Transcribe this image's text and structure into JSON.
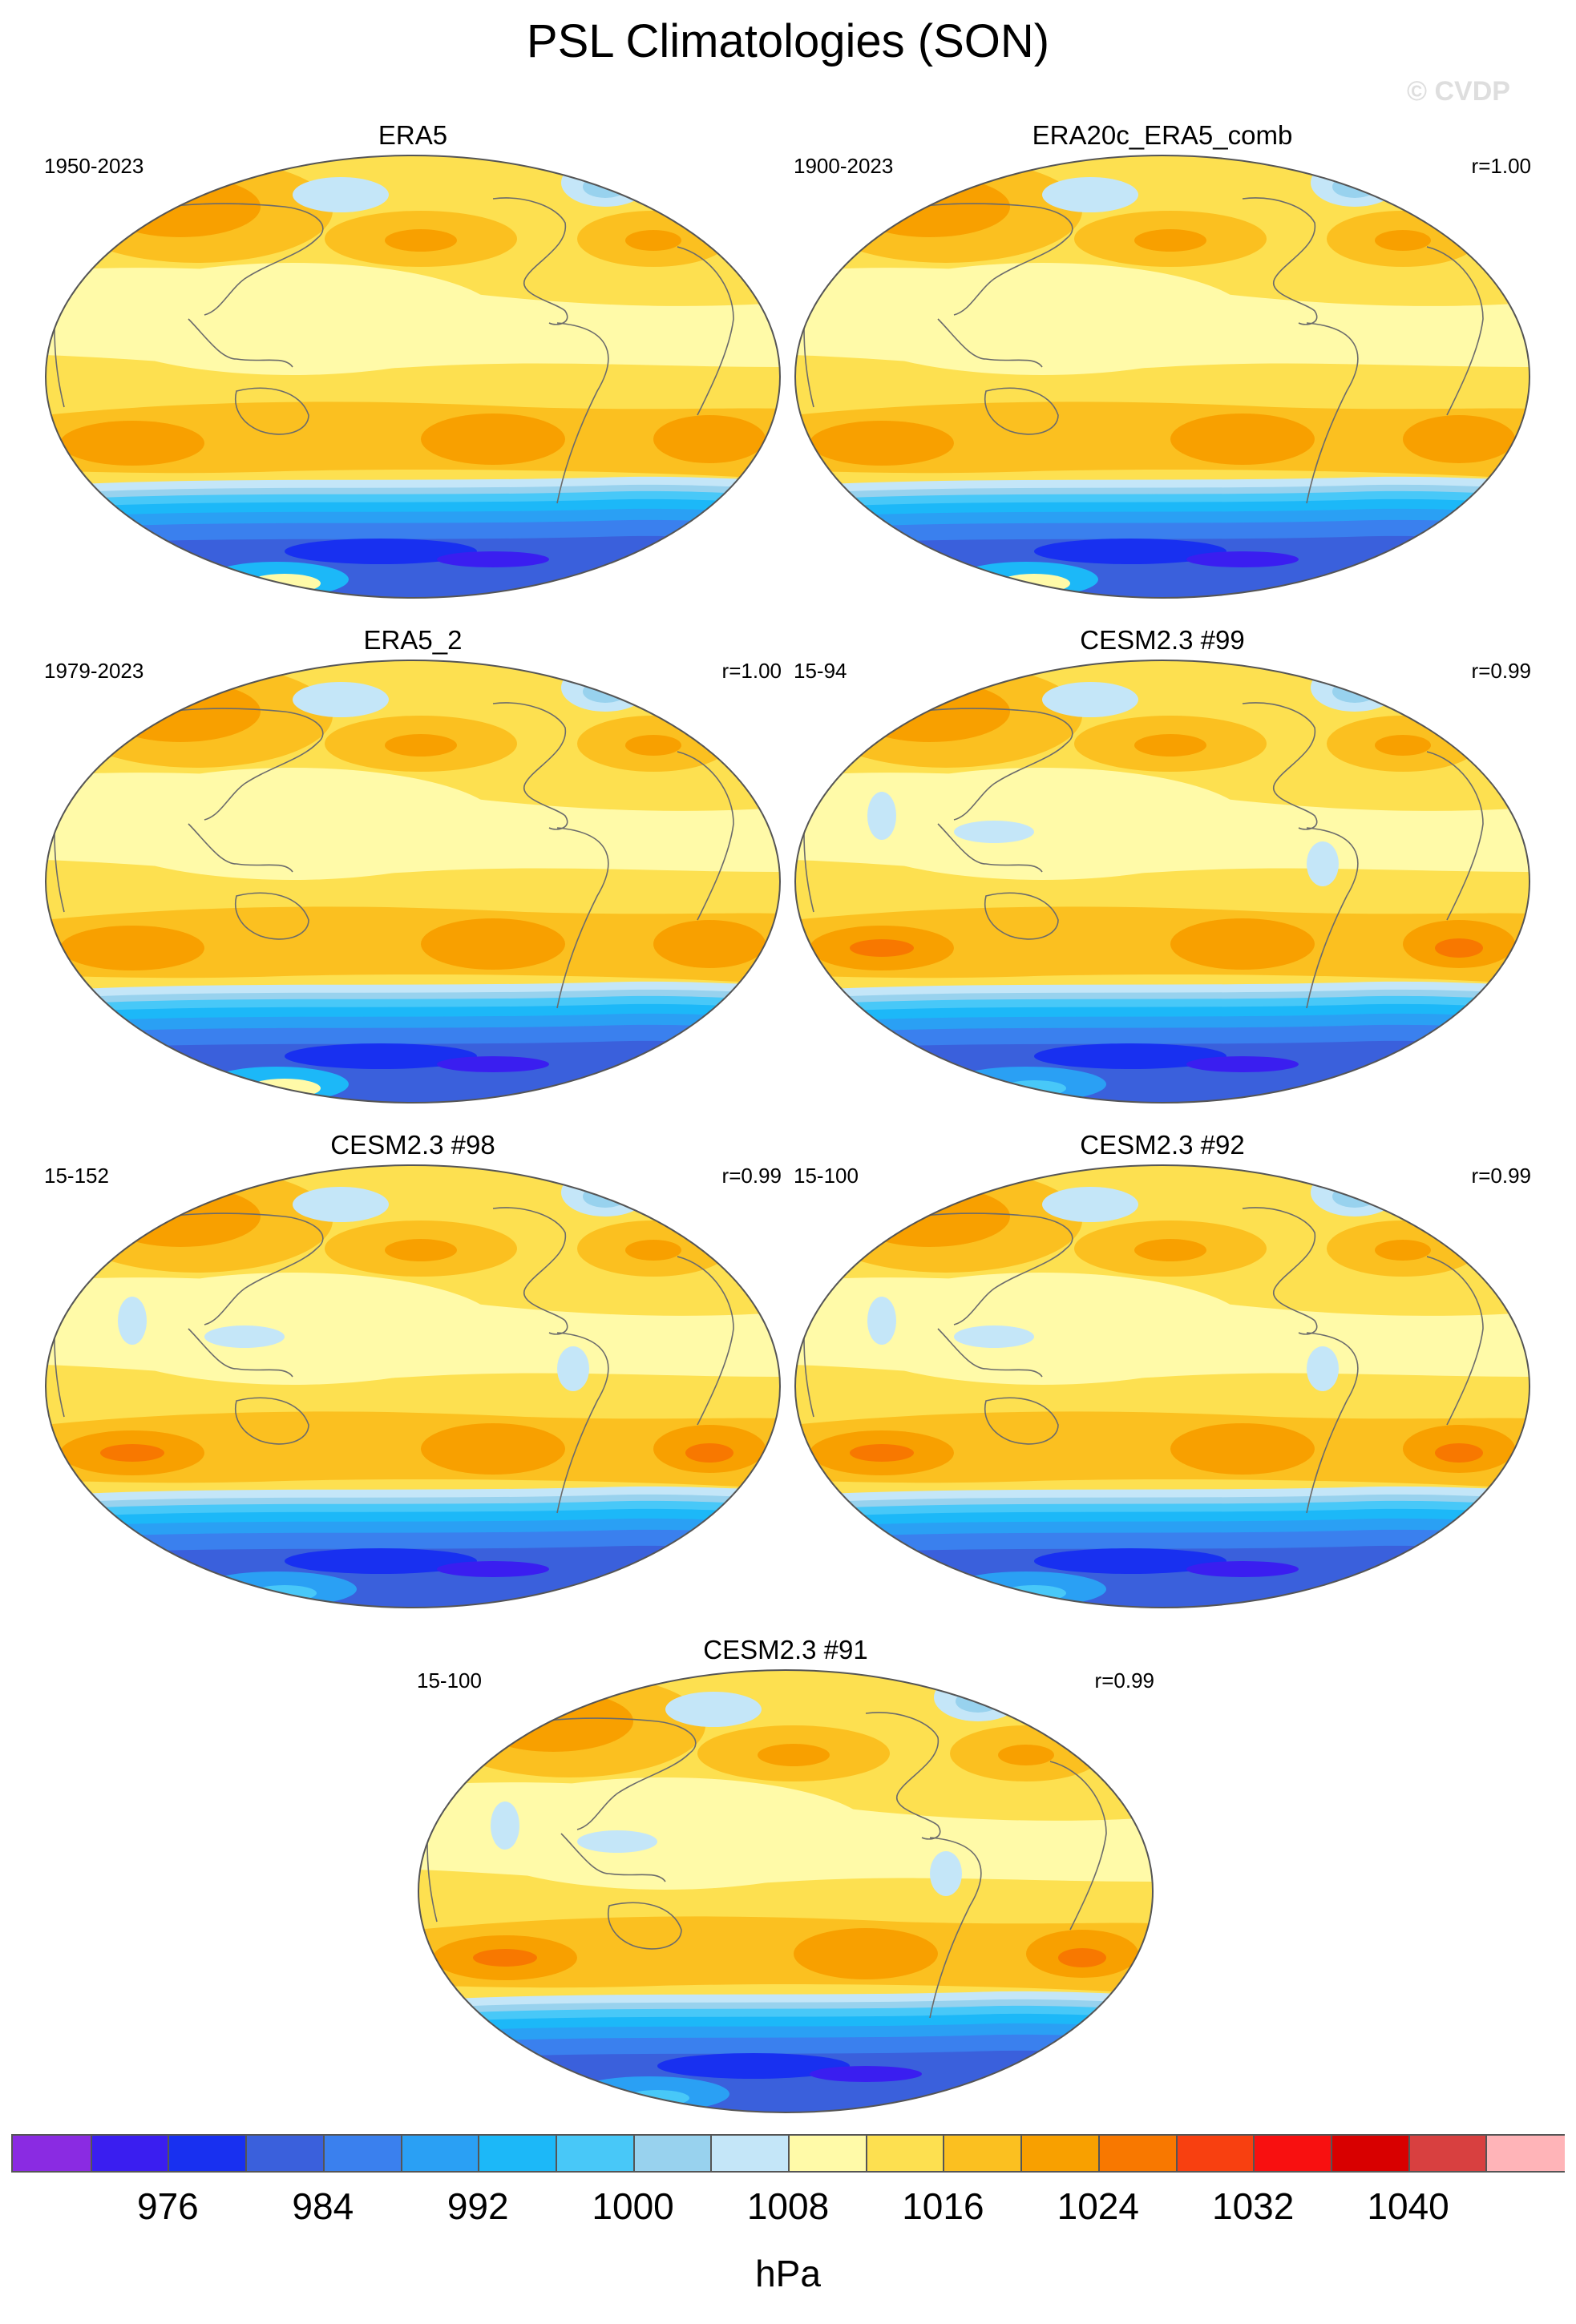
{
  "title": "PSL Climatologies (SON)",
  "watermark": "© CVDP",
  "panels": [
    {
      "title": "ERA5",
      "left": "1950-2023",
      "right": "",
      "variant": "obs"
    },
    {
      "title": "ERA20c_ERA5_comb",
      "left": "1900-2023",
      "right": "r=1.00",
      "variant": "obs"
    },
    {
      "title": "ERA5_2",
      "left": "1979-2023",
      "right": "r=1.00",
      "variant": "obs"
    },
    {
      "title": "CESM2.3 #99",
      "left": "15-94",
      "right": "r=0.99",
      "variant": "model"
    },
    {
      "title": "CESM2.3 #98",
      "left": "15-152",
      "right": "r=0.99",
      "variant": "model"
    },
    {
      "title": "CESM2.3 #92",
      "left": "15-100",
      "right": "r=0.99",
      "variant": "model"
    },
    {
      "title": "CESM2.3 #91",
      "left": "15-100",
      "right": "r=0.99",
      "variant": "model"
    }
  ],
  "colorbar": {
    "units": "hPa",
    "labels": [
      "976",
      "984",
      "992",
      "1000",
      "1008",
      "1016",
      "1024",
      "1032",
      "1040"
    ],
    "colors": [
      "#8a2be2",
      "#3a1ef0",
      "#1830f0",
      "#3a60dc",
      "#3a80ee",
      "#2aa0f4",
      "#1cb8f8",
      "#48c8f8",
      "#98d2ee",
      "#c4e6f8",
      "#fffaa8",
      "#fde050",
      "#fbc020",
      "#f8a000",
      "#f87800",
      "#f84010",
      "#f81010",
      "#d80000",
      "#d84040",
      "#ffb4b8"
    ]
  }
}
